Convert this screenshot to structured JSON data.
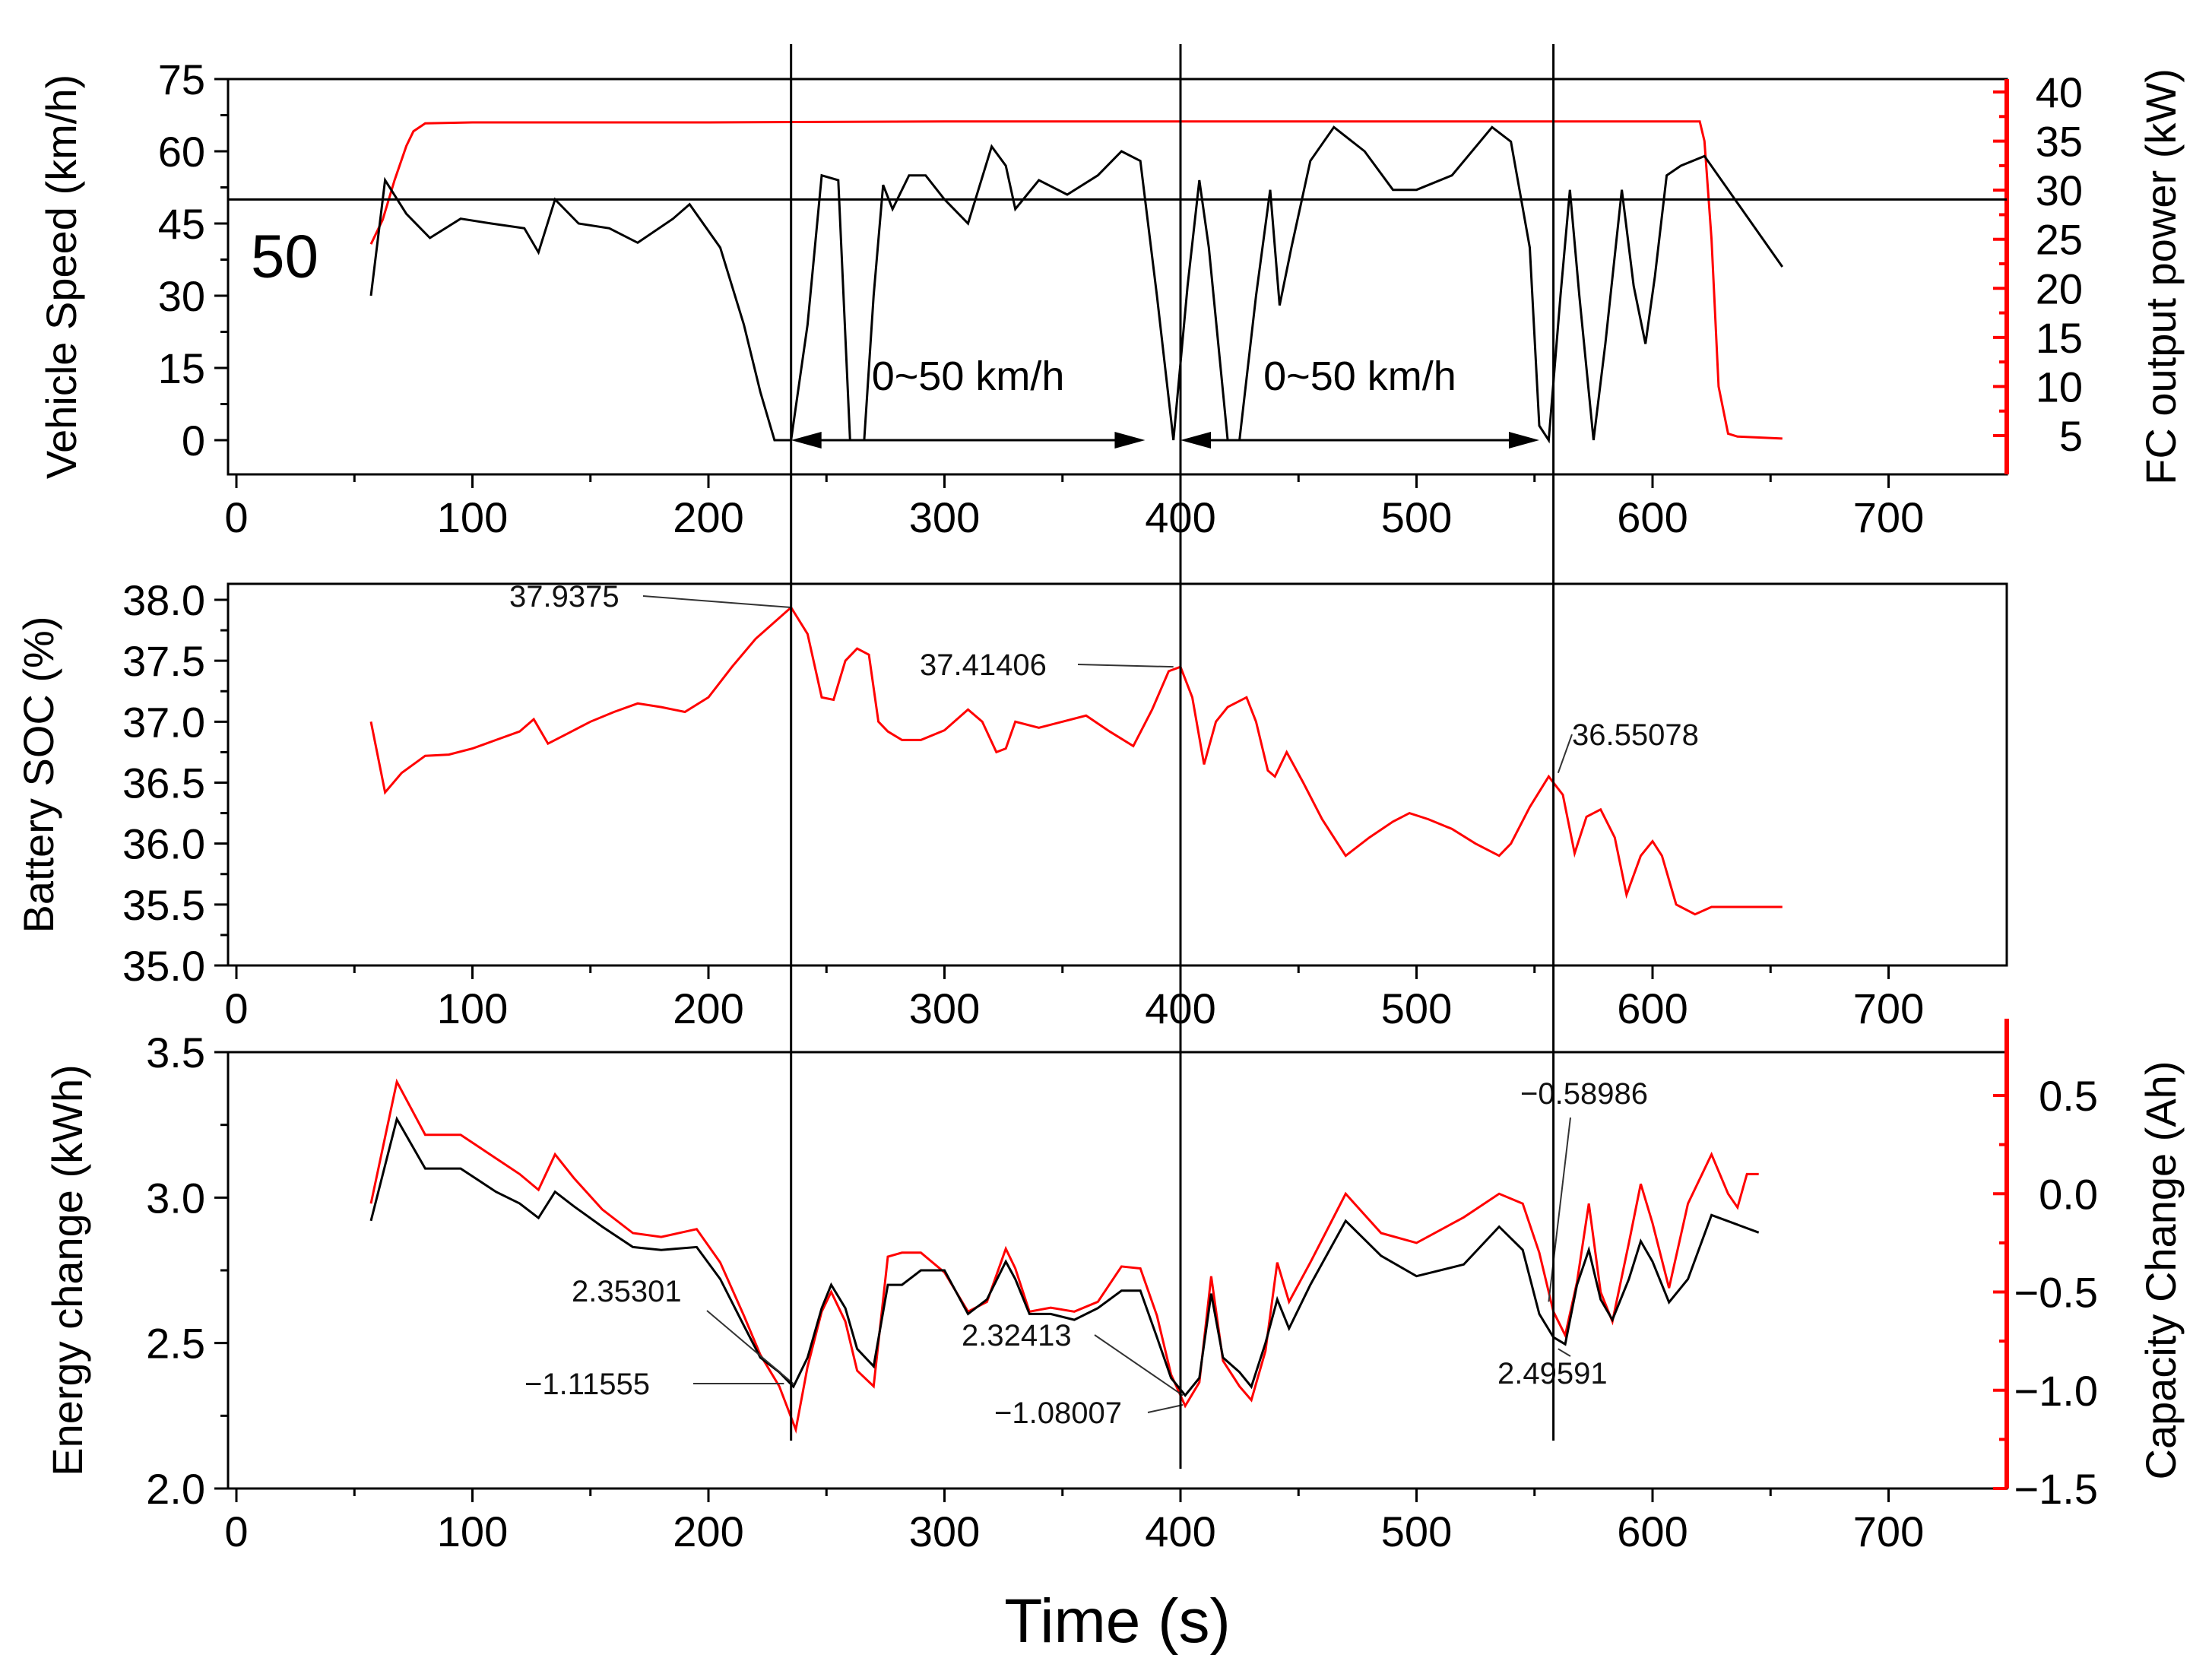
{
  "chart_data": [
    {
      "type": "line",
      "panel": "top",
      "xlim": [
        0,
        750
      ],
      "ylim": [
        -7,
        75
      ],
      "y2lim": [
        1.6,
        43
      ],
      "ylabel": "Vehicle Speed (km/h)",
      "y2label": "FC output power (kW)",
      "x_ticks": [
        0,
        100,
        200,
        300,
        400,
        500,
        600,
        700
      ],
      "y_ticks": [
        0,
        15,
        30,
        45,
        60,
        75
      ],
      "y2_ticks": [
        5,
        10,
        15,
        20,
        25,
        30,
        35,
        40
      ],
      "reference_line": {
        "y": 50,
        "label": "50"
      },
      "range_labels": [
        {
          "text": "0~50 km/h",
          "x_from": 235,
          "x_to": 385
        },
        {
          "text": "0~50 km/h",
          "x_from": 400,
          "x_to": 552
        }
      ],
      "series": [
        {
          "name": "Vehicle Speed",
          "axis": "left",
          "color": "#000000",
          "x": [
            57,
            63,
            72,
            82,
            95,
            108,
            122,
            128,
            135,
            145,
            158,
            170,
            185,
            192,
            205,
            215,
            222,
            228,
            235,
            242,
            248,
            255,
            260,
            266,
            270,
            274,
            278,
            285,
            292,
            300,
            310,
            320,
            326,
            330,
            340,
            352,
            365,
            375,
            383,
            390,
            397,
            403,
            408,
            412,
            416,
            420,
            425,
            432,
            438,
            442,
            447,
            455,
            465,
            478,
            490,
            500,
            515,
            532,
            540,
            548,
            552,
            556,
            561,
            565,
            569,
            575,
            580,
            587,
            592,
            597,
            601,
            606,
            612,
            622,
            655
          ],
          "y": [
            30,
            54,
            47,
            42,
            46,
            45,
            44,
            39,
            50,
            45,
            44,
            41,
            46,
            49,
            40,
            24,
            10,
            0,
            0,
            24,
            55,
            54,
            0,
            0,
            30,
            53,
            48,
            55,
            55,
            50,
            45,
            61,
            57,
            48,
            54,
            51,
            55,
            60,
            58,
            30,
            0,
            32,
            54,
            40,
            20,
            0,
            0,
            30,
            52,
            28,
            40,
            58,
            65,
            60,
            52,
            52,
            55,
            65,
            62,
            40,
            3,
            0,
            30,
            52,
            30,
            0,
            20,
            52,
            32,
            20,
            34,
            55,
            57,
            59,
            36
          ]
        },
        {
          "name": "FC output power",
          "axis": "right",
          "color": "#ff0000",
          "x": [
            57,
            62,
            67,
            72,
            75,
            80,
            100,
            200,
            300,
            400,
            500,
            600,
            620,
            622,
            625,
            628,
            632,
            636,
            655
          ],
          "y": [
            24.5,
            27,
            31,
            34.5,
            36,
            36.8,
            36.9,
            36.9,
            37,
            37,
            37,
            37,
            37,
            35,
            25,
            10,
            5.2,
            4.9,
            4.7
          ]
        }
      ]
    },
    {
      "type": "line",
      "panel": "middle",
      "xlim": [
        0,
        750
      ],
      "ylim": [
        35.0,
        38.2
      ],
      "ylabel": "Battery SOC (%)",
      "x_ticks": [
        0,
        100,
        200,
        300,
        400,
        500,
        600,
        700
      ],
      "y_ticks": [
        35.0,
        35.5,
        36.0,
        36.5,
        37.0,
        37.5,
        38.0
      ],
      "series": [
        {
          "name": "Battery SOC",
          "color": "#ff0000",
          "x": [
            57,
            63,
            70,
            80,
            90,
            100,
            110,
            120,
            126,
            132,
            140,
            150,
            160,
            170,
            180,
            190,
            200,
            210,
            220,
            235,
            242,
            248,
            253,
            258,
            263,
            268,
            272,
            276,
            282,
            290,
            300,
            310,
            316,
            322,
            326,
            330,
            340,
            350,
            360,
            370,
            380,
            388,
            395,
            400,
            405,
            410,
            415,
            420,
            428,
            432,
            437,
            440,
            445,
            452,
            460,
            470,
            480,
            490,
            497,
            505,
            515,
            525,
            535,
            540,
            548,
            556,
            562,
            567,
            572,
            578,
            584,
            589,
            595,
            600,
            604,
            610,
            618,
            625,
            655
          ],
          "y": [
            37.0,
            36.42,
            36.58,
            36.72,
            36.73,
            36.78,
            36.85,
            36.92,
            37.02,
            36.82,
            36.9,
            37.0,
            37.08,
            37.15,
            37.12,
            37.08,
            37.2,
            37.45,
            37.68,
            37.9375,
            37.72,
            37.2,
            37.18,
            37.5,
            37.6,
            37.55,
            37.0,
            36.92,
            36.85,
            36.85,
            36.93,
            37.1,
            37.0,
            36.75,
            36.78,
            37.0,
            36.95,
            37.0,
            37.05,
            36.92,
            36.8,
            37.1,
            37.41406,
            37.45,
            37.2,
            36.65,
            37.0,
            37.12,
            37.2,
            37.0,
            36.6,
            36.55,
            36.75,
            36.5,
            36.2,
            35.9,
            36.05,
            36.18,
            36.25,
            36.2,
            36.12,
            36.0,
            35.9,
            36.0,
            36.3,
            36.55078,
            36.4,
            35.92,
            36.22,
            36.28,
            36.05,
            35.58,
            35.9,
            36.02,
            35.9,
            35.5,
            35.42,
            35.48,
            35.48
          ]
        }
      ],
      "annotations": [
        "37.9375",
        "37.41406",
        "36.55078"
      ]
    },
    {
      "type": "line",
      "panel": "bottom",
      "xlim": [
        0,
        750
      ],
      "xlabel": "Time (s)",
      "ylim": [
        2.0,
        3.5
      ],
      "y2lim": [
        -1.5,
        0.78
      ],
      "ylabel": "Energy change (kWh)",
      "y2label": "Capacity Change (Ah)",
      "x_ticks": [
        0,
        100,
        200,
        300,
        400,
        500,
        600,
        700
      ],
      "y_ticks": [
        2.0,
        2.5,
        3.0,
        3.5
      ],
      "y2_ticks": [
        -1.5,
        -1.0,
        -0.5,
        0.0,
        0.5
      ],
      "series": [
        {
          "name": "Energy change",
          "axis": "left",
          "color": "#000000",
          "x": [
            57,
            68,
            80,
            95,
            110,
            120,
            128,
            135,
            143,
            155,
            168,
            180,
            195,
            205,
            215,
            222,
            230,
            236,
            242,
            248,
            252,
            258,
            263,
            270,
            276,
            282,
            290,
            300,
            310,
            318,
            326,
            330,
            336,
            345,
            355,
            365,
            375,
            383,
            390,
            396,
            402,
            408,
            413,
            418,
            425,
            430,
            436,
            441,
            446,
            455,
            470,
            485,
            500,
            520,
            535,
            545,
            552,
            558,
            563,
            568,
            573,
            578,
            583,
            590,
            595,
            600,
            607,
            615,
            625,
            645
          ],
          "y": [
            2.92,
            3.27,
            3.1,
            3.1,
            3.02,
            2.98,
            2.93,
            3.02,
            2.97,
            2.9,
            2.83,
            2.82,
            2.83,
            2.72,
            2.56,
            2.45,
            2.4,
            2.35,
            2.45,
            2.62,
            2.7,
            2.62,
            2.48,
            2.42,
            2.7,
            2.7,
            2.75,
            2.75,
            2.6,
            2.65,
            2.78,
            2.72,
            2.6,
            2.6,
            2.58,
            2.62,
            2.68,
            2.68,
            2.52,
            2.38,
            2.32,
            2.38,
            2.67,
            2.45,
            2.4,
            2.35,
            2.5,
            2.65,
            2.55,
            2.7,
            2.92,
            2.8,
            2.73,
            2.77,
            2.9,
            2.82,
            2.6,
            2.52,
            2.49591,
            2.7,
            2.82,
            2.65,
            2.58,
            2.72,
            2.85,
            2.78,
            2.64,
            2.72,
            2.94,
            2.88
          ]
        },
        {
          "name": "Capacity Change",
          "axis": "right",
          "color": "#ff0000",
          "x": [
            57,
            68,
            80,
            95,
            110,
            120,
            128,
            135,
            143,
            155,
            168,
            180,
            195,
            205,
            215,
            222,
            230,
            237,
            242,
            248,
            252,
            258,
            263,
            270,
            276,
            282,
            290,
            300,
            310,
            318,
            326,
            330,
            336,
            345,
            355,
            365,
            375,
            383,
            390,
            396,
            402,
            408,
            413,
            418,
            425,
            430,
            436,
            441,
            446,
            455,
            470,
            485,
            500,
            520,
            535,
            545,
            552,
            558,
            563,
            568,
            573,
            578,
            583,
            590,
            595,
            600,
            607,
            615,
            625,
            632,
            636,
            640,
            645
          ],
          "y": [
            -0.05,
            0.57,
            0.3,
            0.3,
            0.18,
            0.1,
            0.02,
            0.2,
            0.08,
            -0.08,
            -0.2,
            -0.22,
            -0.18,
            -0.35,
            -0.62,
            -0.82,
            -0.98,
            -1.2,
            -0.88,
            -0.6,
            -0.5,
            -0.65,
            -0.9,
            -0.98,
            -0.32,
            -0.3,
            -0.3,
            -0.4,
            -0.6,
            -0.55,
            -0.28,
            -0.38,
            -0.6,
            -0.58,
            -0.6,
            -0.55,
            -0.37,
            -0.38,
            -0.62,
            -0.92,
            -1.08,
            -0.96,
            -0.42,
            -0.85,
            -0.98,
            -1.05,
            -0.8,
            -0.35,
            -0.55,
            -0.35,
            0.0,
            -0.2,
            -0.25,
            -0.12,
            0.0,
            -0.05,
            -0.3,
            -0.6,
            -0.72,
            -0.45,
            -0.05,
            -0.5,
            -0.65,
            -0.25,
            0.05,
            -0.15,
            -0.48,
            -0.05,
            0.2,
            0.0,
            -0.07,
            0.1,
            0.1
          ]
        }
      ],
      "annotations": [
        "2.35301",
        "−1.11555",
        "2.32413",
        "−1.08007",
        "−0.58986",
        "2.49591"
      ]
    }
  ],
  "vertical_markers": [
    235,
    400,
    558
  ]
}
